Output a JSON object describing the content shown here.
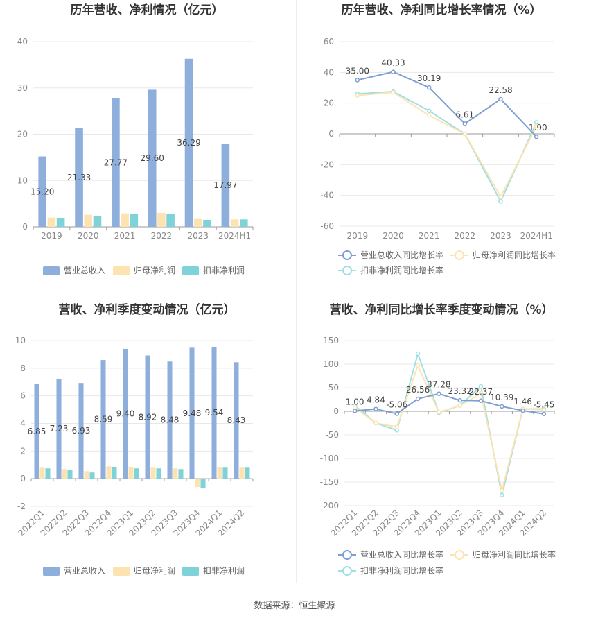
{
  "source": "数据来源：恒生聚源",
  "chart_data": [
    {
      "id": "p1",
      "type": "bar",
      "title": "历年营收、净利情况（亿元）",
      "categories": [
        "2019",
        "2020",
        "2021",
        "2022",
        "2023",
        "2024H1"
      ],
      "ylim": [
        0,
        40
      ],
      "yticks": [
        0,
        10,
        20,
        30,
        40
      ],
      "series": [
        {
          "name": "营业总收入",
          "color": "#8eaedc",
          "values": [
            15.2,
            21.33,
            27.77,
            29.6,
            36.29,
            17.97
          ],
          "labels": [
            "15.20",
            "21.33",
            "27.77",
            "29.60",
            "36.29",
            "17.97"
          ]
        },
        {
          "name": "归母净利润",
          "color": "#fde3b0",
          "values": [
            2.0,
            2.6,
            2.9,
            3.0,
            1.7,
            1.6
          ]
        },
        {
          "name": "扣非净利润",
          "color": "#7fd3d8",
          "values": [
            1.8,
            2.4,
            2.7,
            2.8,
            1.5,
            1.6
          ]
        }
      ],
      "legend": "bottom"
    },
    {
      "id": "p2",
      "type": "line",
      "title": "历年营收、净利同比增长率情况（%）",
      "categories": [
        "2019",
        "2020",
        "2021",
        "2022",
        "2023",
        "2024H1"
      ],
      "ylim": [
        -60,
        60
      ],
      "yticks": [
        -60,
        -40,
        -20,
        0,
        20,
        40,
        60
      ],
      "series": [
        {
          "name": "营业总收入同比增长率",
          "color": "#7e9fd2",
          "values": [
            35.0,
            40.33,
            30.19,
            6.61,
            22.58,
            -1.9
          ],
          "labels": [
            "35.00",
            "40.33",
            "30.19",
            "6.61",
            "22.58",
            "-1.90"
          ]
        },
        {
          "name": "归母净利润同比增长率",
          "color": "#fde3b0",
          "values": [
            25,
            27,
            12,
            0,
            -41,
            5
          ]
        },
        {
          "name": "扣非净利润同比增长率",
          "color": "#9ee0e4",
          "values": [
            26,
            27.5,
            15,
            0,
            -44,
            7.5
          ]
        }
      ],
      "legend": "bottom"
    },
    {
      "id": "p3",
      "type": "bar",
      "title": "营收、净利季度变动情况（亿元）",
      "categories": [
        "2022Q1",
        "2022Q2",
        "2022Q3",
        "2022Q4",
        "2023Q1",
        "2023Q2",
        "2023Q3",
        "2023Q4",
        "2024Q1",
        "2024Q2"
      ],
      "ylim": [
        -2,
        10
      ],
      "yticks": [
        -2,
        0,
        2,
        4,
        6,
        8,
        10
      ],
      "series": [
        {
          "name": "营业总收入",
          "color": "#8eaedc",
          "values": [
            6.85,
            7.23,
            6.93,
            8.59,
            9.4,
            8.92,
            8.48,
            9.48,
            9.54,
            8.43
          ],
          "labels": [
            "6.85",
            "7.23",
            "6.93",
            "8.59",
            "9.40",
            "8.92",
            "8.48",
            "9.48",
            "9.54",
            "8.43"
          ]
        },
        {
          "name": "归母净利润",
          "color": "#fde3b0",
          "values": [
            0.8,
            0.7,
            0.55,
            0.9,
            0.85,
            0.8,
            0.75,
            -0.6,
            0.85,
            0.8
          ]
        },
        {
          "name": "扣非净利润",
          "color": "#7fd3d8",
          "values": [
            0.75,
            0.65,
            0.45,
            0.85,
            0.75,
            0.75,
            0.7,
            -0.7,
            0.8,
            0.8
          ]
        }
      ],
      "legend": "bottom"
    },
    {
      "id": "p4",
      "type": "line",
      "title": "营收、净利同比增长率季度变动情况（%）",
      "categories": [
        "2022Q1",
        "2022Q2",
        "2022Q3",
        "2022Q4",
        "2023Q1",
        "2023Q2",
        "2023Q3",
        "2023Q4",
        "2024Q1",
        "2024Q2"
      ],
      "ylim": [
        -200,
        150
      ],
      "yticks": [
        -200,
        -150,
        -100,
        -50,
        0,
        50,
        100,
        150
      ],
      "series": [
        {
          "name": "营业总收入同比增长率",
          "color": "#7e9fd2",
          "values": [
            1.0,
            4.84,
            -5.06,
            26.56,
            37.28,
            23.32,
            22.37,
            10.39,
            1.46,
            -5.45
          ],
          "labels": [
            "1.00",
            "4.84",
            "-5.06",
            "26.56",
            "37.28",
            "23.32",
            "22.37",
            "10.39",
            "1.46",
            "-5.45"
          ]
        },
        {
          "name": "归母净利润同比增长率",
          "color": "#fde3b0",
          "values": [
            8,
            -25,
            -33,
            97,
            -2,
            12,
            38,
            -168,
            5,
            3
          ]
        },
        {
          "name": "扣非净利润同比增长率",
          "color": "#9ee0e4",
          "values": [
            12,
            -25,
            -40,
            122,
            -3,
            12,
            53,
            -178,
            5,
            5
          ]
        }
      ],
      "legend": "bottom"
    }
  ]
}
